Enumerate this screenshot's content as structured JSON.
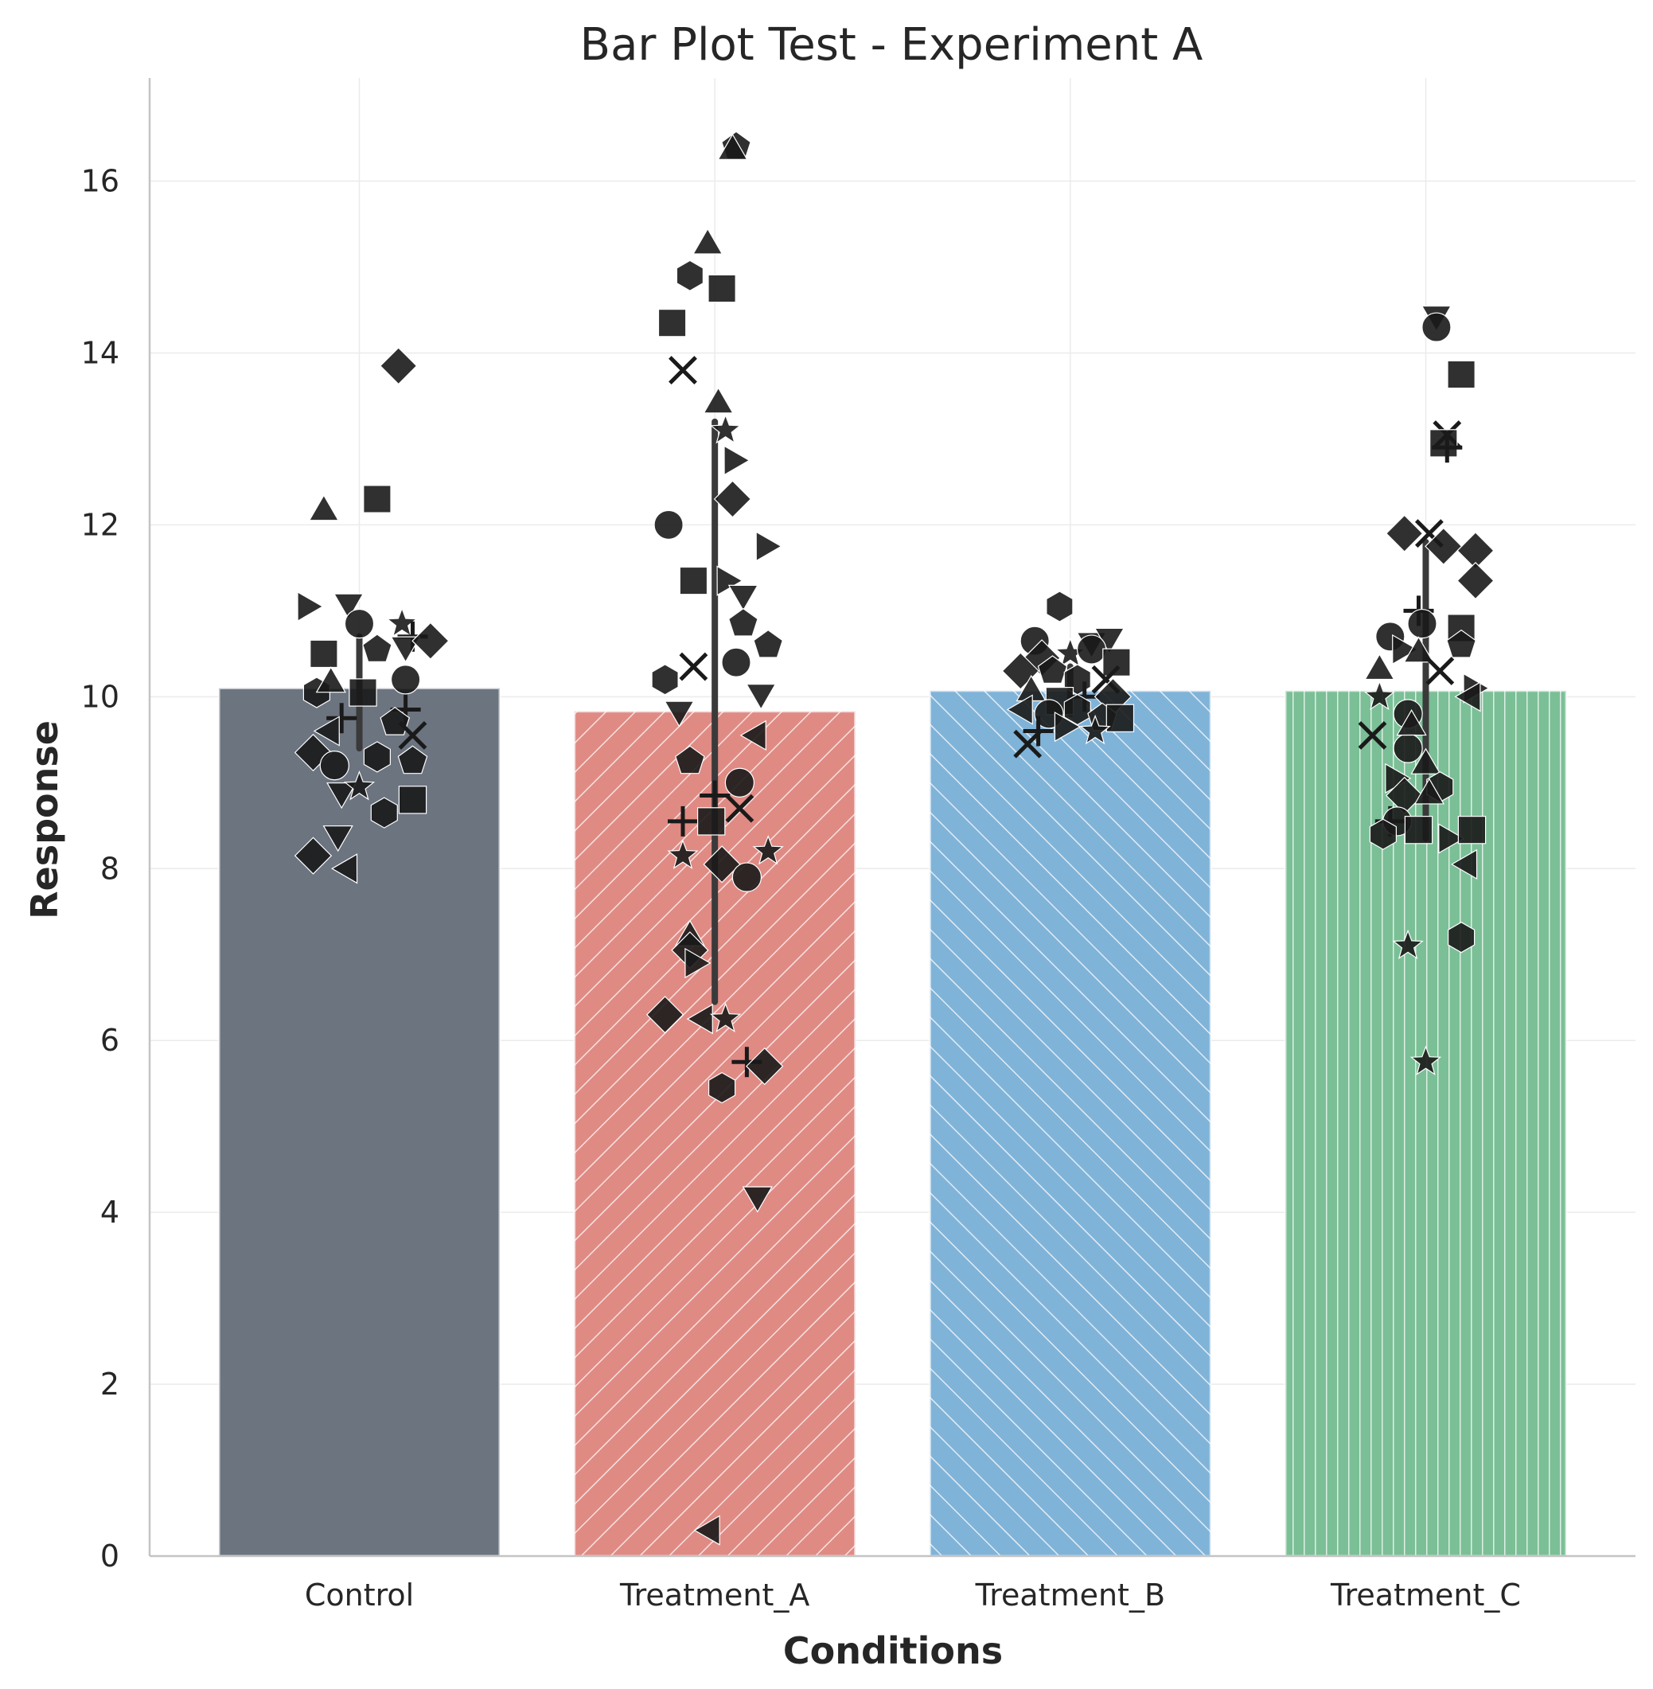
{
  "chart_data": {
    "type": "bar",
    "title": "Bar Plot Test - Experiment A",
    "xlabel": "Conditions",
    "ylabel": "Response",
    "ylim": [
      0,
      17.2
    ],
    "yticks": [
      0,
      2,
      4,
      6,
      8,
      10,
      12,
      14,
      16
    ],
    "grid": true,
    "categories": [
      "Control",
      "Treatment_A",
      "Treatment_B",
      "Treatment_C"
    ],
    "values": [
      10.1,
      9.83,
      10.07,
      10.07
    ],
    "error_bars": [
      {
        "low": 9.4,
        "high": 10.7
      },
      {
        "low": 6.45,
        "high": 13.2
      },
      {
        "low": 9.8,
        "high": 10.35
      },
      {
        "low": 8.35,
        "high": 11.8
      }
    ],
    "bar_colors": [
      "#6c7480",
      "#e08a84",
      "#80b3d8",
      "#7bbf96"
    ],
    "hatches": [
      "none",
      "diagonal-forward",
      "diagonal-back",
      "vertical"
    ],
    "strip_points": [
      [
        {
          "dx": -0.15,
          "y": 11.05,
          "m": "tri-right"
        },
        {
          "dx": -0.03,
          "y": 11.1,
          "m": "tri-down"
        },
        {
          "dx": 0.12,
          "y": 10.85,
          "m": "star"
        },
        {
          "dx": 0.15,
          "y": 10.7,
          "m": "plus"
        },
        {
          "dx": -0.1,
          "y": 10.5,
          "m": "square"
        },
        {
          "dx": 0.0,
          "y": 10.85,
          "m": "circle"
        },
        {
          "dx": 0.05,
          "y": 10.55,
          "m": "pentagon"
        },
        {
          "dx": 0.13,
          "y": 10.6,
          "m": "tri-down"
        },
        {
          "dx": 0.2,
          "y": 10.65,
          "m": "diamond"
        },
        {
          "dx": -0.12,
          "y": 10.05,
          "m": "hexagon"
        },
        {
          "dx": -0.08,
          "y": 10.15,
          "m": "tri-up"
        },
        {
          "dx": 0.01,
          "y": 10.05,
          "m": "square"
        },
        {
          "dx": 0.13,
          "y": 10.2,
          "m": "circle"
        },
        {
          "dx": -0.05,
          "y": 9.75,
          "m": "plus"
        },
        {
          "dx": 0.13,
          "y": 9.85,
          "m": "plus"
        },
        {
          "dx": 0.1,
          "y": 9.7,
          "m": "pentagon"
        },
        {
          "dx": -0.08,
          "y": 9.6,
          "m": "tri-left"
        },
        {
          "dx": 0.15,
          "y": 9.55,
          "m": "x"
        },
        {
          "dx": -0.13,
          "y": 9.35,
          "m": "diamond"
        },
        {
          "dx": -0.07,
          "y": 9.2,
          "m": "circle"
        },
        {
          "dx": 0.05,
          "y": 9.3,
          "m": "hexagon"
        },
        {
          "dx": 0.15,
          "y": 9.25,
          "m": "pentagon"
        },
        {
          "dx": -0.05,
          "y": 8.9,
          "m": "tri-down"
        },
        {
          "dx": 0.0,
          "y": 8.95,
          "m": "star"
        },
        {
          "dx": 0.07,
          "y": 8.65,
          "m": "hexagon"
        },
        {
          "dx": 0.15,
          "y": 8.8,
          "m": "square"
        },
        {
          "dx": -0.06,
          "y": 8.4,
          "m": "tri-down"
        },
        {
          "dx": -0.13,
          "y": 8.15,
          "m": "diamond"
        },
        {
          "dx": -0.03,
          "y": 8.0,
          "m": "tri-left"
        },
        {
          "dx": -0.1,
          "y": 12.15,
          "m": "tri-up"
        },
        {
          "dx": 0.05,
          "y": 12.3,
          "m": "square"
        },
        {
          "dx": 0.11,
          "y": 13.85,
          "m": "diamond"
        }
      ],
      [
        {
          "dx": 0.06,
          "y": 16.4,
          "m": "pentagon"
        },
        {
          "dx": 0.05,
          "y": 16.35,
          "m": "tri-up"
        },
        {
          "dx": -0.07,
          "y": 14.9,
          "m": "hexagon"
        },
        {
          "dx": -0.02,
          "y": 15.25,
          "m": "tri-up"
        },
        {
          "dx": 0.02,
          "y": 14.75,
          "m": "square"
        },
        {
          "dx": -0.12,
          "y": 14.35,
          "m": "square"
        },
        {
          "dx": -0.09,
          "y": 13.8,
          "m": "x"
        },
        {
          "dx": 0.01,
          "y": 13.4,
          "m": "tri-up"
        },
        {
          "dx": 0.03,
          "y": 13.1,
          "m": "star"
        },
        {
          "dx": 0.05,
          "y": 12.75,
          "m": "tri-right"
        },
        {
          "dx": 0.05,
          "y": 12.3,
          "m": "diamond"
        },
        {
          "dx": -0.13,
          "y": 12.0,
          "m": "circle"
        },
        {
          "dx": 0.14,
          "y": 11.75,
          "m": "tri-right"
        },
        {
          "dx": -0.06,
          "y": 11.35,
          "m": "square"
        },
        {
          "dx": 0.03,
          "y": 11.35,
          "m": "tri-right"
        },
        {
          "dx": 0.08,
          "y": 11.2,
          "m": "tri-down"
        },
        {
          "dx": 0.08,
          "y": 10.85,
          "m": "pentagon"
        },
        {
          "dx": 0.15,
          "y": 10.6,
          "m": "pentagon"
        },
        {
          "dx": 0.06,
          "y": 10.4,
          "m": "circle"
        },
        {
          "dx": -0.06,
          "y": 10.35,
          "m": "x"
        },
        {
          "dx": -0.14,
          "y": 10.2,
          "m": "hexagon"
        },
        {
          "dx": 0.13,
          "y": 10.05,
          "m": "tri-down"
        },
        {
          "dx": -0.1,
          "y": 9.85,
          "m": "tri-down"
        },
        {
          "dx": 0.12,
          "y": 9.55,
          "m": "tri-left"
        },
        {
          "dx": -0.07,
          "y": 9.25,
          "m": "pentagon"
        },
        {
          "dx": 0.07,
          "y": 9.0,
          "m": "circle"
        },
        {
          "dx": 0.0,
          "y": 8.85,
          "m": "plus"
        },
        {
          "dx": 0.07,
          "y": 8.7,
          "m": "x"
        },
        {
          "dx": -0.09,
          "y": 8.55,
          "m": "plus"
        },
        {
          "dx": -0.01,
          "y": 8.55,
          "m": "square"
        },
        {
          "dx": -0.09,
          "y": 8.15,
          "m": "star"
        },
        {
          "dx": 0.15,
          "y": 8.2,
          "m": "star"
        },
        {
          "dx": 0.02,
          "y": 8.05,
          "m": "diamond"
        },
        {
          "dx": 0.09,
          "y": 7.9,
          "m": "circle"
        },
        {
          "dx": -0.07,
          "y": 7.2,
          "m": "tri-up"
        },
        {
          "dx": -0.07,
          "y": 7.05,
          "m": "diamond"
        },
        {
          "dx": -0.06,
          "y": 6.9,
          "m": "tri-right"
        },
        {
          "dx": -0.14,
          "y": 6.3,
          "m": "diamond"
        },
        {
          "dx": -0.03,
          "y": 6.25,
          "m": "tri-left"
        },
        {
          "dx": 0.03,
          "y": 6.25,
          "m": "star"
        },
        {
          "dx": 0.09,
          "y": 5.75,
          "m": "plus"
        },
        {
          "dx": 0.14,
          "y": 5.7,
          "m": "diamond"
        },
        {
          "dx": 0.02,
          "y": 5.45,
          "m": "hexagon"
        },
        {
          "dx": 0.12,
          "y": 4.2,
          "m": "tri-down"
        },
        {
          "dx": -0.01,
          "y": 0.3,
          "m": "tri-left"
        }
      ],
      [
        {
          "dx": -0.03,
          "y": 11.05,
          "m": "hexagon"
        },
        {
          "dx": -0.1,
          "y": 10.65,
          "m": "circle"
        },
        {
          "dx": 0.06,
          "y": 10.65,
          "m": "tri-down"
        },
        {
          "dx": 0.11,
          "y": 10.7,
          "m": "tri-down"
        },
        {
          "dx": -0.08,
          "y": 10.45,
          "m": "diamond"
        },
        {
          "dx": 0.0,
          "y": 10.5,
          "m": "star"
        },
        {
          "dx": 0.06,
          "y": 10.55,
          "m": "circle"
        },
        {
          "dx": 0.13,
          "y": 10.4,
          "m": "square"
        },
        {
          "dx": -0.14,
          "y": 10.3,
          "m": "diamond"
        },
        {
          "dx": -0.05,
          "y": 10.3,
          "m": "pentagon"
        },
        {
          "dx": 0.02,
          "y": 10.2,
          "m": "hexagon"
        },
        {
          "dx": 0.1,
          "y": 10.2,
          "m": "x"
        },
        {
          "dx": -0.11,
          "y": 10.05,
          "m": "tri-up"
        },
        {
          "dx": -0.03,
          "y": 9.95,
          "m": "square"
        },
        {
          "dx": 0.04,
          "y": 10.0,
          "m": "plus"
        },
        {
          "dx": 0.12,
          "y": 10.0,
          "m": "diamond"
        },
        {
          "dx": -0.13,
          "y": 9.85,
          "m": "tri-left"
        },
        {
          "dx": -0.06,
          "y": 9.8,
          "m": "circle"
        },
        {
          "dx": 0.02,
          "y": 9.85,
          "m": "hexagon"
        },
        {
          "dx": 0.09,
          "y": 9.75,
          "m": "pentagon"
        },
        {
          "dx": 0.14,
          "y": 9.75,
          "m": "square"
        },
        {
          "dx": -0.09,
          "y": 9.6,
          "m": "plus"
        },
        {
          "dx": -0.02,
          "y": 9.65,
          "m": "tri-right"
        },
        {
          "dx": 0.07,
          "y": 9.6,
          "m": "star"
        },
        {
          "dx": -0.12,
          "y": 9.45,
          "m": "x"
        }
      ],
      [
        {
          "dx": 0.03,
          "y": 14.45,
          "m": "tri-down"
        },
        {
          "dx": 0.03,
          "y": 14.3,
          "m": "circle"
        },
        {
          "dx": 0.1,
          "y": 13.75,
          "m": "square"
        },
        {
          "dx": 0.06,
          "y": 13.05,
          "m": "x"
        },
        {
          "dx": 0.05,
          "y": 12.95,
          "m": "square"
        },
        {
          "dx": 0.06,
          "y": 12.9,
          "m": "plus"
        },
        {
          "dx": -0.06,
          "y": 11.9,
          "m": "diamond"
        },
        {
          "dx": 0.01,
          "y": 11.9,
          "m": "x"
        },
        {
          "dx": 0.05,
          "y": 11.75,
          "m": "diamond"
        },
        {
          "dx": 0.14,
          "y": 11.7,
          "m": "diamond"
        },
        {
          "dx": 0.14,
          "y": 11.35,
          "m": "diamond"
        },
        {
          "dx": -0.02,
          "y": 11.0,
          "m": "plus"
        },
        {
          "dx": -0.01,
          "y": 10.85,
          "m": "circle"
        },
        {
          "dx": -0.1,
          "y": 10.7,
          "m": "circle"
        },
        {
          "dx": 0.1,
          "y": 10.8,
          "m": "square"
        },
        {
          "dx": 0.1,
          "y": 10.6,
          "m": "pentagon"
        },
        {
          "dx": -0.07,
          "y": 10.55,
          "m": "tri-right"
        },
        {
          "dx": -0.02,
          "y": 10.5,
          "m": "tri-up"
        },
        {
          "dx": 0.04,
          "y": 10.3,
          "m": "x"
        },
        {
          "dx": -0.13,
          "y": 10.3,
          "m": "tri-up"
        },
        {
          "dx": -0.13,
          "y": 10.0,
          "m": "star"
        },
        {
          "dx": 0.13,
          "y": 10.1,
          "m": "tri-right"
        },
        {
          "dx": 0.13,
          "y": 10.0,
          "m": "tri-left"
        },
        {
          "dx": -0.05,
          "y": 9.8,
          "m": "circle"
        },
        {
          "dx": -0.15,
          "y": 9.55,
          "m": "x"
        },
        {
          "dx": -0.05,
          "y": 9.4,
          "m": "circle"
        },
        {
          "dx": -0.04,
          "y": 9.65,
          "m": "tri-up"
        },
        {
          "dx": -0.09,
          "y": 9.05,
          "m": "tri-right"
        },
        {
          "dx": 0.0,
          "y": 9.2,
          "m": "tri-up"
        },
        {
          "dx": 0.04,
          "y": 8.95,
          "m": "hexagon"
        },
        {
          "dx": -0.06,
          "y": 8.85,
          "m": "diamond"
        },
        {
          "dx": 0.01,
          "y": 8.85,
          "m": "tri-up"
        },
        {
          "dx": -0.1,
          "y": 8.55,
          "m": "plus"
        },
        {
          "dx": -0.08,
          "y": 8.55,
          "m": "circle"
        },
        {
          "dx": -0.02,
          "y": 8.45,
          "m": "square"
        },
        {
          "dx": 0.06,
          "y": 8.35,
          "m": "tri-right"
        },
        {
          "dx": 0.13,
          "y": 8.45,
          "m": "square"
        },
        {
          "dx": -0.12,
          "y": 8.4,
          "m": "hexagon"
        },
        {
          "dx": 0.12,
          "y": 8.05,
          "m": "tri-left"
        },
        {
          "dx": 0.1,
          "y": 7.2,
          "m": "hexagon"
        },
        {
          "dx": -0.05,
          "y": 7.1,
          "m": "star"
        },
        {
          "dx": 0.0,
          "y": 5.75,
          "m": "star"
        }
      ]
    ]
  }
}
